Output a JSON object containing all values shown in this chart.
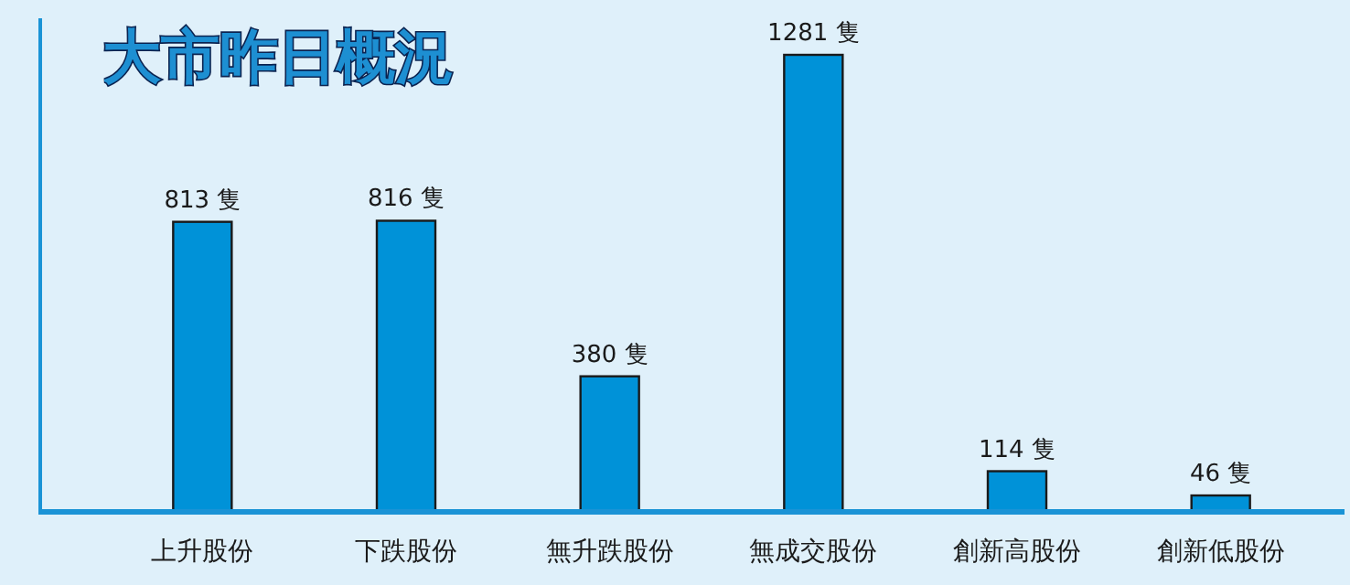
{
  "chart_data": {
    "type": "bar",
    "title": "大市昨日概況",
    "categories": [
      "上升股份",
      "下跌股份",
      "無升跌股份",
      "無成交股份",
      "創新高股份",
      "創新低股份"
    ],
    "values": [
      813,
      816,
      380,
      1281,
      114,
      46
    ],
    "value_labels": [
      "813 隻",
      "816 隻",
      "380 隻",
      "1281 隻",
      "114 隻",
      "46 隻"
    ],
    "color": "#0092d8"
  }
}
